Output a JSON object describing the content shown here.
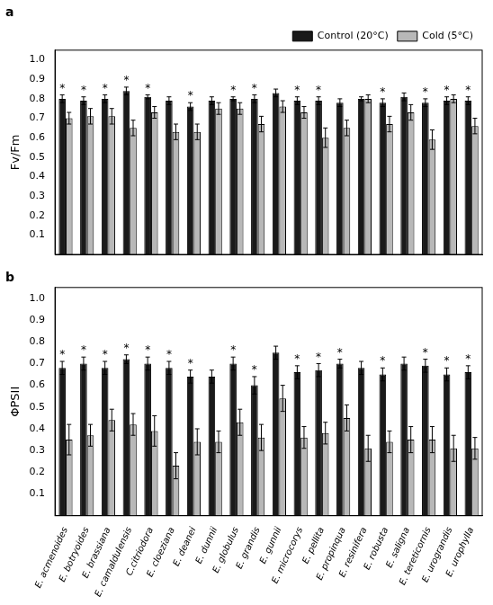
{
  "chart_data": [
    {
      "type": "bar",
      "title": "a",
      "y_label": "Fv/Fm",
      "categories": [
        "E. acmenoides",
        "E. botryoides",
        "E. brassiana",
        "E. camaldulensis",
        "C.citriodora",
        "E. cloeziana",
        "E. deanei",
        "E. dunnii",
        "E. globulus",
        "E. grandis",
        "E. gunnii",
        "E. microcorys",
        "E. pellita",
        "E. propinqua",
        "E. resinifera",
        "E. robusta",
        "E. saligna",
        "E. tereticornis",
        "E. urograndis",
        "E. urophylla"
      ],
      "series": [
        {
          "name": "Control (20°C)",
          "color": "#1a1a1a",
          "values": [
            0.8,
            0.79,
            0.8,
            0.84,
            0.81,
            0.79,
            0.76,
            0.79,
            0.8,
            0.8,
            0.83,
            0.79,
            0.79,
            0.78,
            0.8,
            0.78,
            0.81,
            0.78,
            0.79,
            0.79
          ],
          "errors": [
            0.02,
            0.02,
            0.02,
            0.02,
            0.01,
            0.02,
            0.02,
            0.02,
            0.01,
            0.02,
            0.02,
            0.02,
            0.02,
            0.02,
            0.01,
            0.02,
            0.02,
            0.02,
            0.02,
            0.02
          ]
        },
        {
          "name": "Cold (5°C)",
          "color": "#b8b8b8",
          "values": [
            0.7,
            0.71,
            0.71,
            0.65,
            0.73,
            0.63,
            0.63,
            0.75,
            0.75,
            0.67,
            0.76,
            0.73,
            0.6,
            0.65,
            0.8,
            0.67,
            0.73,
            0.59,
            0.8,
            0.66
          ],
          "errors": [
            0.03,
            0.04,
            0.04,
            0.04,
            0.03,
            0.04,
            0.04,
            0.03,
            0.03,
            0.04,
            0.03,
            0.03,
            0.05,
            0.04,
            0.02,
            0.04,
            0.04,
            0.05,
            0.02,
            0.04
          ]
        }
      ],
      "annotations": [
        {
          "text": "*",
          "category": "E. acmenoides",
          "series": "Control (20°C)"
        },
        {
          "text": "*",
          "category": "E. botryoides",
          "series": "Control (20°C)"
        },
        {
          "text": "*",
          "category": "E. brassiana",
          "series": "Control (20°C)"
        },
        {
          "text": "*",
          "category": "E. camaldulensis",
          "series": "Control (20°C)"
        },
        {
          "text": "*",
          "category": "C.citriodora",
          "series": "Control (20°C)"
        },
        {
          "text": "*",
          "category": "E. deanei",
          "series": "Control (20°C)"
        },
        {
          "text": "*",
          "category": "E. globulus",
          "series": "Control (20°C)"
        },
        {
          "text": "*",
          "category": "E. grandis",
          "series": "Control (20°C)"
        },
        {
          "text": "*",
          "category": "E. microcorys",
          "series": "Control (20°C)"
        },
        {
          "text": "*",
          "category": "E. pellita",
          "series": "Control (20°C)"
        },
        {
          "text": "*",
          "category": "E. robusta",
          "series": "Control (20°C)"
        },
        {
          "text": "*",
          "category": "E. tereticornis",
          "series": "Control (20°C)"
        },
        {
          "text": "*",
          "category": "E. urograndis",
          "series": "Control (20°C)"
        },
        {
          "text": "*",
          "category": "E. urophylla",
          "series": "Control (20°C)"
        }
      ],
      "ylim": [
        0.0,
        1.05
      ],
      "yticks": [
        0.1,
        0.2,
        0.3,
        0.4,
        0.5,
        0.6,
        0.7,
        0.8,
        0.9,
        {
          "value": 1.0,
          "label": "1.0"
        }
      ],
      "grid": false,
      "legend": "upper right",
      "tick_labels": "y"
    },
    {
      "type": "bar",
      "title": "b",
      "y_label": "ΦPSII",
      "categories": [
        "E. acmenoides",
        "E. botryoides",
        "E. brassiana",
        "E. camaldulensis",
        "C.citriodora",
        "E. cloeziana",
        "E. deanei",
        "E. dunnii",
        "E. globulus",
        "E. grandis",
        "E. gunnii",
        "E. microcorys",
        "E. pellita",
        "E. propinqua",
        "E. resinifera",
        "E. robusta",
        "E. saligna",
        "E. tereticornis",
        "E. urograndis",
        "E. urophylla"
      ],
      "series": [
        {
          "name": "Control (20°C)",
          "color": "#1a1a1a",
          "values": [
            0.68,
            0.7,
            0.68,
            0.72,
            0.7,
            0.68,
            0.64,
            0.64,
            0.7,
            0.6,
            0.75,
            0.66,
            0.67,
            0.7,
            0.68,
            0.65,
            0.7,
            0.69,
            0.65,
            0.66
          ],
          "errors": [
            0.03,
            0.03,
            0.03,
            0.02,
            0.03,
            0.03,
            0.03,
            0.03,
            0.03,
            0.04,
            0.03,
            0.03,
            0.03,
            0.02,
            0.03,
            0.03,
            0.03,
            0.03,
            0.03,
            0.03
          ]
        },
        {
          "name": "Cold (5°C)",
          "color": "#b8b8b8",
          "values": [
            0.35,
            0.37,
            0.44,
            0.42,
            0.39,
            0.23,
            0.34,
            0.34,
            0.43,
            0.36,
            0.54,
            0.36,
            0.38,
            0.45,
            0.31,
            0.34,
            0.35,
            0.35,
            0.31,
            0.31
          ],
          "errors": [
            0.07,
            0.05,
            0.05,
            0.05,
            0.07,
            0.06,
            0.06,
            0.05,
            0.06,
            0.06,
            0.06,
            0.05,
            0.05,
            0.06,
            0.06,
            0.05,
            0.06,
            0.06,
            0.06,
            0.05
          ]
        }
      ],
      "annotations": [
        {
          "text": "*",
          "category": "E. acmenoides",
          "series": "Control (20°C)"
        },
        {
          "text": "*",
          "category": "E. botryoides",
          "series": "Control (20°C)"
        },
        {
          "text": "*",
          "category": "E. brassiana",
          "series": "Control (20°C)"
        },
        {
          "text": "*",
          "category": "E. camaldulensis",
          "series": "Control (20°C)"
        },
        {
          "text": "*",
          "category": "C.citriodora",
          "series": "Control (20°C)"
        },
        {
          "text": "*",
          "category": "E. cloeziana",
          "series": "Control (20°C)"
        },
        {
          "text": "*",
          "category": "E. deanei",
          "series": "Control (20°C)"
        },
        {
          "text": "*",
          "category": "E. globulus",
          "series": "Control (20°C)"
        },
        {
          "text": "*",
          "category": "E. grandis",
          "series": "Control (20°C)"
        },
        {
          "text": "*",
          "category": "E. microcorys",
          "series": "Control (20°C)"
        },
        {
          "text": "*",
          "category": "E. pellita",
          "series": "Control (20°C)"
        },
        {
          "text": "*",
          "category": "E. propinqua",
          "series": "Control (20°C)"
        },
        {
          "text": "*",
          "category": "E. robusta",
          "series": "Control (20°C)"
        },
        {
          "text": "*",
          "category": "E. tereticornis",
          "series": "Control (20°C)"
        },
        {
          "text": "*",
          "category": "E. urograndis",
          "series": "Control (20°C)"
        },
        {
          "text": "*",
          "category": "E. urophylla",
          "series": "Control (20°C)"
        }
      ],
      "ylim": [
        0.0,
        1.05
      ],
      "yticks": [
        0.1,
        0.2,
        0.3,
        0.4,
        0.5,
        0.6,
        0.7,
        0.8,
        0.9,
        {
          "value": 1.0,
          "label": "1.0"
        }
      ],
      "grid": false
    }
  ]
}
